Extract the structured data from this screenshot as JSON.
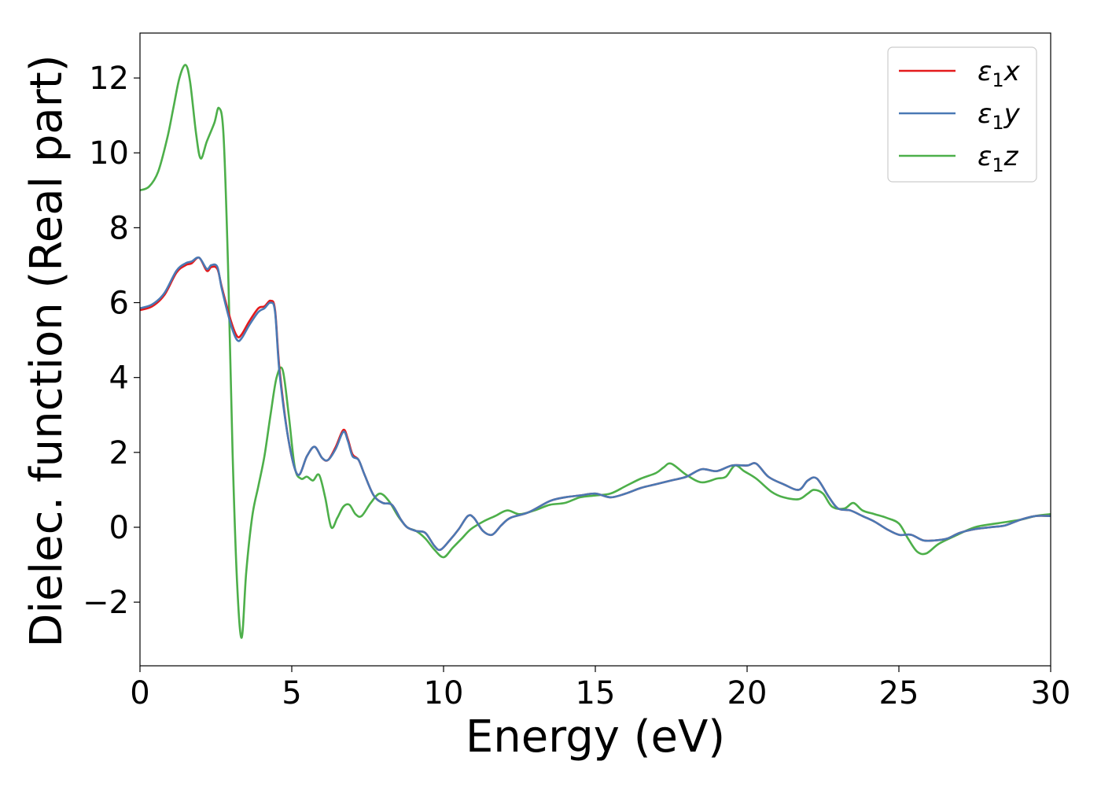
{
  "chart_data": {
    "type": "line",
    "title": "",
    "xlabel": "Energy (eV)",
    "ylabel": "Dielec. function (Real part)",
    "xlim": [
      0,
      30
    ],
    "ylim": [
      -3.7,
      13.2
    ],
    "xticks": [
      0,
      5,
      10,
      15,
      20,
      25,
      30
    ],
    "xtick_labels": [
      "0",
      "5",
      "10",
      "15",
      "20",
      "25",
      "30"
    ],
    "yticks": [
      -2,
      0,
      2,
      4,
      6,
      8,
      10,
      12
    ],
    "ytick_labels": [
      "−2",
      "0",
      "2",
      "4",
      "6",
      "8",
      "10",
      "12"
    ],
    "grid": false,
    "legend_position": "top-right",
    "series": [
      {
        "name": "ε₁x",
        "legend_base": "ε",
        "legend_sub": "1",
        "legend_var": "x",
        "color": "#e41a1c",
        "x": [
          0,
          0.4,
          0.8,
          1.2,
          1.5,
          1.7,
          1.95,
          2.2,
          2.35,
          2.55,
          2.7,
          3.0,
          3.2,
          3.35,
          3.6,
          3.9,
          4.1,
          4.3,
          4.45,
          4.6,
          4.9,
          5.2,
          5.5,
          5.75,
          6.0,
          6.2,
          6.45,
          6.7,
          6.85,
          7.0,
          7.2,
          7.4,
          7.7,
          8.0,
          8.3,
          8.6,
          8.8,
          9.1,
          9.4,
          9.7,
          9.9,
          10.2,
          10.5,
          10.8,
          11.0,
          11.3,
          11.6,
          11.9,
          12.2,
          12.8,
          13.5,
          14.0,
          14.5,
          15.0,
          15.5,
          16.0,
          16.5,
          17.0,
          17.5,
          18.0,
          18.5,
          19.0,
          19.5,
          20.0,
          20.3,
          20.7,
          21.2,
          21.7,
          22.0,
          22.3,
          22.7,
          23.0,
          23.4,
          23.8,
          24.2,
          24.6,
          25.0,
          25.4,
          25.8,
          26.2,
          26.6,
          27.0,
          27.5,
          28.0,
          28.5,
          29.0,
          29.5,
          30.0
        ],
        "y": [
          5.8,
          5.9,
          6.2,
          6.8,
          7.0,
          7.05,
          7.2,
          6.85,
          6.95,
          6.9,
          6.4,
          5.5,
          5.1,
          5.15,
          5.5,
          5.85,
          5.9,
          6.05,
          5.8,
          4.2,
          2.3,
          1.4,
          1.9,
          2.15,
          1.85,
          1.8,
          2.15,
          2.6,
          2.35,
          1.95,
          1.8,
          1.4,
          0.85,
          0.65,
          0.6,
          0.2,
          0.0,
          -0.1,
          -0.15,
          -0.5,
          -0.6,
          -0.35,
          -0.05,
          0.3,
          0.25,
          -0.1,
          -0.2,
          0.05,
          0.25,
          0.4,
          0.7,
          0.8,
          0.85,
          0.9,
          0.8,
          0.9,
          1.05,
          1.15,
          1.25,
          1.35,
          1.55,
          1.5,
          1.65,
          1.65,
          1.7,
          1.35,
          1.15,
          1.0,
          1.25,
          1.3,
          0.8,
          0.5,
          0.45,
          0.3,
          0.15,
          -0.05,
          -0.2,
          -0.2,
          -0.35,
          -0.35,
          -0.3,
          -0.15,
          -0.05,
          0.0,
          0.05,
          0.2,
          0.3,
          0.3
        ]
      },
      {
        "name": "ε₁y",
        "legend_base": "ε",
        "legend_sub": "1",
        "legend_var": "y",
        "color": "#4a79b4",
        "x": [
          0,
          0.4,
          0.8,
          1.2,
          1.5,
          1.7,
          1.95,
          2.2,
          2.35,
          2.55,
          2.7,
          3.0,
          3.2,
          3.35,
          3.6,
          3.9,
          4.1,
          4.3,
          4.45,
          4.6,
          4.9,
          5.2,
          5.5,
          5.75,
          6.0,
          6.2,
          6.45,
          6.7,
          6.85,
          7.0,
          7.2,
          7.4,
          7.7,
          8.0,
          8.3,
          8.6,
          8.8,
          9.1,
          9.4,
          9.7,
          9.9,
          10.2,
          10.5,
          10.8,
          11.0,
          11.3,
          11.6,
          11.9,
          12.2,
          12.8,
          13.5,
          14.0,
          14.5,
          15.0,
          15.5,
          16.0,
          16.5,
          17.0,
          17.5,
          18.0,
          18.5,
          19.0,
          19.5,
          20.0,
          20.3,
          20.7,
          21.2,
          21.7,
          22.0,
          22.3,
          22.7,
          23.0,
          23.4,
          23.8,
          24.2,
          24.6,
          25.0,
          25.4,
          25.8,
          26.2,
          26.6,
          27.0,
          27.5,
          28.0,
          28.5,
          29.0,
          29.5,
          30.0
        ],
        "y": [
          5.85,
          5.95,
          6.25,
          6.85,
          7.05,
          7.1,
          7.2,
          6.9,
          7.0,
          6.95,
          6.35,
          5.4,
          5.0,
          5.05,
          5.4,
          5.75,
          5.85,
          6.0,
          5.75,
          4.1,
          2.3,
          1.4,
          1.9,
          2.15,
          1.85,
          1.8,
          2.1,
          2.55,
          2.3,
          1.9,
          1.8,
          1.4,
          0.85,
          0.65,
          0.6,
          0.2,
          0.0,
          -0.1,
          -0.15,
          -0.5,
          -0.6,
          -0.35,
          -0.05,
          0.3,
          0.25,
          -0.1,
          -0.2,
          0.05,
          0.25,
          0.4,
          0.7,
          0.8,
          0.85,
          0.9,
          0.8,
          0.9,
          1.05,
          1.15,
          1.25,
          1.35,
          1.55,
          1.5,
          1.65,
          1.65,
          1.7,
          1.35,
          1.15,
          1.0,
          1.25,
          1.3,
          0.8,
          0.5,
          0.45,
          0.3,
          0.15,
          -0.05,
          -0.2,
          -0.2,
          -0.35,
          -0.35,
          -0.3,
          -0.15,
          -0.05,
          0.0,
          0.05,
          0.2,
          0.3,
          0.3
        ]
      },
      {
        "name": "ε₁z",
        "legend_base": "ε",
        "legend_sub": "1",
        "legend_var": "z",
        "color": "#4daf4a",
        "x": [
          0,
          0.3,
          0.6,
          0.9,
          1.1,
          1.3,
          1.5,
          1.65,
          1.85,
          2.0,
          2.2,
          2.45,
          2.6,
          2.75,
          2.9,
          3.05,
          3.2,
          3.35,
          3.5,
          3.7,
          3.9,
          4.1,
          4.3,
          4.5,
          4.7,
          4.9,
          5.1,
          5.3,
          5.5,
          5.7,
          5.9,
          6.1,
          6.3,
          6.5,
          6.7,
          6.9,
          7.1,
          7.3,
          7.6,
          7.9,
          8.2,
          8.5,
          8.8,
          9.1,
          9.4,
          9.7,
          10.0,
          10.3,
          10.6,
          10.9,
          11.3,
          11.7,
          12.1,
          12.5,
          13.0,
          13.5,
          14.0,
          14.5,
          15.0,
          15.5,
          16.0,
          16.5,
          17.0,
          17.25,
          17.5,
          18.0,
          18.5,
          19.0,
          19.3,
          19.6,
          19.9,
          20.3,
          20.8,
          21.2,
          21.7,
          22.0,
          22.2,
          22.5,
          22.8,
          23.2,
          23.5,
          23.8,
          24.2,
          24.6,
          25.0,
          25.3,
          25.6,
          25.9,
          26.3,
          26.8,
          27.5,
          28.2,
          29.0,
          29.5,
          30.0
        ],
        "y": [
          9.0,
          9.1,
          9.5,
          10.4,
          11.2,
          12.0,
          12.35,
          11.9,
          10.5,
          9.85,
          10.3,
          10.8,
          11.2,
          10.5,
          7.0,
          2.0,
          -1.5,
          -2.95,
          -1.2,
          0.3,
          1.1,
          1.9,
          3.0,
          4.0,
          4.2,
          3.0,
          1.6,
          1.3,
          1.35,
          1.25,
          1.4,
          0.8,
          0.0,
          0.25,
          0.55,
          0.6,
          0.35,
          0.3,
          0.65,
          0.9,
          0.7,
          0.3,
          0.0,
          -0.1,
          -0.3,
          -0.6,
          -0.8,
          -0.55,
          -0.3,
          -0.05,
          0.15,
          0.3,
          0.45,
          0.35,
          0.45,
          0.6,
          0.65,
          0.8,
          0.85,
          0.9,
          1.1,
          1.3,
          1.45,
          1.6,
          1.7,
          1.4,
          1.2,
          1.3,
          1.35,
          1.65,
          1.5,
          1.3,
          0.95,
          0.8,
          0.75,
          0.9,
          1.0,
          0.9,
          0.55,
          0.5,
          0.65,
          0.45,
          0.35,
          0.25,
          0.1,
          -0.3,
          -0.65,
          -0.7,
          -0.45,
          -0.25,
          0.0,
          0.1,
          0.2,
          0.3,
          0.35
        ]
      }
    ]
  }
}
